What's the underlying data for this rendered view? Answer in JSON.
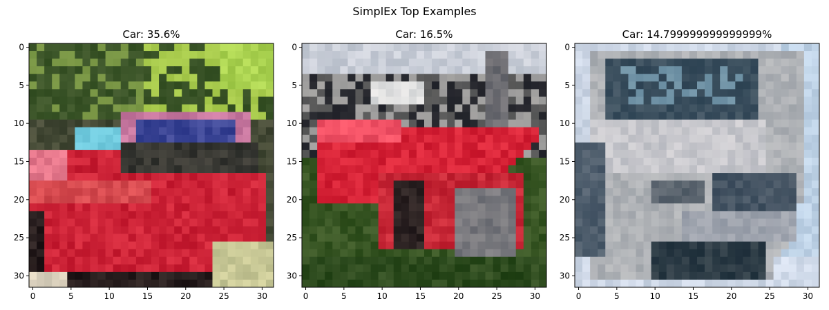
{
  "figure": {
    "suptitle": "SimplEx Top Examples"
  },
  "chart_data": [
    {
      "type": "heatmap",
      "title": "Car: 35.6%",
      "image": "red car side view, foliage background",
      "x_ticks": [
        0,
        5,
        10,
        15,
        20,
        25,
        30
      ],
      "y_ticks": [
        0,
        5,
        10,
        15,
        20,
        25,
        30
      ],
      "xlim": [
        -0.5,
        31.5
      ],
      "ylim": [
        31.5,
        -0.5
      ],
      "grid": false
    },
    {
      "type": "heatmap",
      "title": "Car: 16.5%",
      "image": "red convertible on grass, people behind",
      "x_ticks": [
        0,
        5,
        10,
        15,
        20,
        25,
        30
      ],
      "y_ticks": [
        0,
        5,
        10,
        15,
        20,
        25,
        30
      ],
      "xlim": [
        -0.5,
        31.5
      ],
      "ylim": [
        31.5,
        -0.5
      ],
      "grid": false
    },
    {
      "type": "heatmap",
      "title": "Car: 14.799999999999999%",
      "image": "silver car front view, light blue background",
      "x_ticks": [
        0,
        5,
        10,
        15,
        20,
        25,
        30
      ],
      "y_ticks": [
        0,
        5,
        10,
        15,
        20,
        25,
        30
      ],
      "xlim": [
        -0.5,
        31.5
      ],
      "ylim": [
        31.5,
        -0.5
      ],
      "grid": false
    }
  ]
}
